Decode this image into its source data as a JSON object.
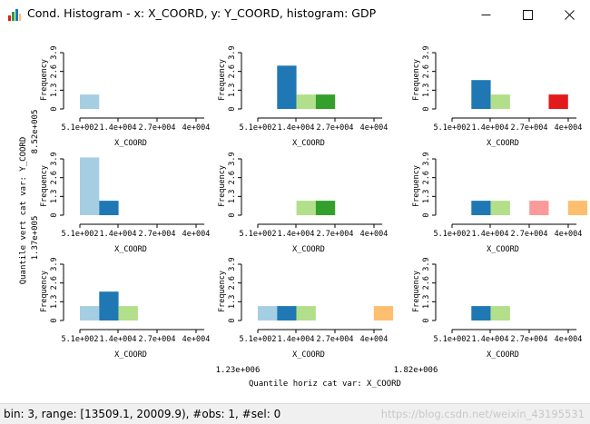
{
  "window": {
    "title": "Cond. Histogram - x: X_COORD, y: Y_COORD, histogram: GDP",
    "minimize_icon": "minimize-icon",
    "maximize_icon": "maximize-icon",
    "close_icon": "close-icon"
  },
  "status": {
    "text": "bin: 3, range: [13509.1, 20009.9), #obs: 1, #sel: 0",
    "watermark": "https://blog.csdn.net/weixin_43195531"
  },
  "colors": {
    "bin1": "#a6cee3",
    "bin2": "#1f78b4",
    "bin3": "#b2df8a",
    "bin4": "#33a02c",
    "bin5": "#fb9a99",
    "bin6": "#e31a1c",
    "bin7": "#fdbf6f"
  },
  "chart_data": {
    "type": "bar",
    "layout": "3x3 conditional histogram grid",
    "xlabel": "X_COORD",
    "ylabel": "Frequency",
    "x_tick_labels": [
      "5.1e+002",
      "1.4e+004",
      "2.7e+004",
      "4e+004"
    ],
    "y_ticks": [
      0,
      1.3,
      2.6,
      3.9
    ],
    "ylim": [
      0,
      3.9
    ],
    "bins": 7,
    "horiz_cat_var_label": "Quantile horiz cat var: X_COORD",
    "horiz_breaks": [
      "1.23e+006",
      "1.82e+006"
    ],
    "vert_cat_var_label": "Quantile vert cat var: Y_COORD",
    "vert_breaks": [
      "8.52e+005",
      "1.37e+005"
    ],
    "panels": [
      {
        "row": 0,
        "col": 0,
        "values": [
          1,
          0,
          0,
          0,
          0,
          0,
          0
        ]
      },
      {
        "row": 0,
        "col": 1,
        "values": [
          0,
          3,
          1,
          1,
          0,
          0,
          0
        ]
      },
      {
        "row": 0,
        "col": 2,
        "values": [
          0,
          2,
          1,
          0,
          0,
          1,
          0
        ]
      },
      {
        "row": 1,
        "col": 0,
        "values": [
          4,
          1,
          0,
          0,
          0,
          0,
          0
        ]
      },
      {
        "row": 1,
        "col": 1,
        "values": [
          0,
          0,
          1,
          1,
          0,
          0,
          0
        ]
      },
      {
        "row": 1,
        "col": 2,
        "values": [
          0,
          1,
          1,
          0,
          1,
          0,
          1
        ]
      },
      {
        "row": 2,
        "col": 0,
        "values": [
          1,
          2,
          1,
          0,
          0,
          0,
          0
        ]
      },
      {
        "row": 2,
        "col": 1,
        "values": [
          1,
          1,
          1,
          0,
          0,
          0,
          1
        ]
      },
      {
        "row": 2,
        "col": 2,
        "values": [
          0,
          1,
          1,
          0,
          0,
          0,
          0
        ]
      }
    ]
  }
}
